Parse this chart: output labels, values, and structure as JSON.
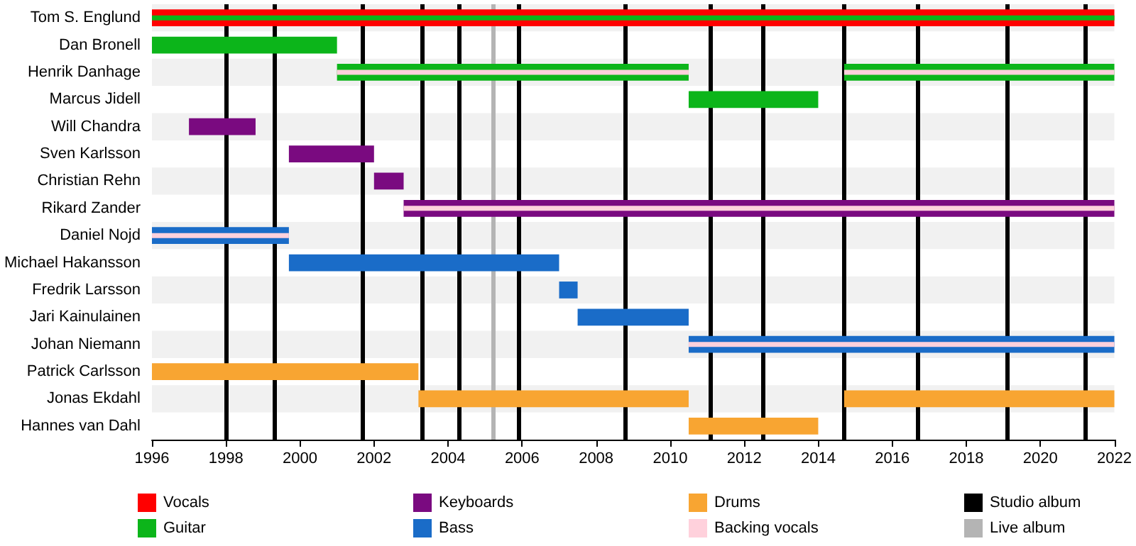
{
  "chart_data": {
    "type": "bar",
    "orientation": "horizontal",
    "legend": "bottom",
    "categories": [
      "Tom S. Englund",
      "Dan Bronell",
      "Henrik Danhage",
      "Marcus Jidell",
      "Will Chandra",
      "Sven Karlsson",
      "Christian Rehn",
      "Rikard Zander",
      "Daniel Nojd",
      "Michael Hakansson",
      "Fredrik Larsson",
      "Jari Kainulainen",
      "Johan Niemann",
      "Patrick Carlsson",
      "Jonas Ekdahl",
      "Hannes van Dahl"
    ],
    "xlim": [
      1996,
      2022
    ],
    "xticks": [
      1996,
      1998,
      2000,
      2002,
      2004,
      2006,
      2008,
      2010,
      2012,
      2014,
      2016,
      2018,
      2020,
      2022
    ],
    "series": [
      {
        "name": "Vocals",
        "color": "#ff0000",
        "base": [
          1996,
          null,
          null,
          null,
          null,
          null,
          null,
          null,
          null,
          null,
          null,
          null,
          null,
          null,
          null,
          null
        ],
        "values": [
          26,
          null,
          null,
          null,
          null,
          null,
          null,
          null,
          null,
          null,
          null,
          null,
          null,
          null,
          null,
          null
        ]
      },
      {
        "name": "Guitar",
        "color": "#0cb51a",
        "base": [
          null,
          1996,
          2001,
          2010.5,
          null,
          null,
          null,
          null,
          null,
          null,
          null,
          null,
          null,
          null,
          null,
          null
        ],
        "values": [
          null,
          5,
          9.5,
          3.5,
          null,
          null,
          null,
          null,
          null,
          null,
          null,
          null,
          null,
          null,
          null,
          null
        ]
      },
      {
        "name": "Keyboards",
        "color": "#7a0a80",
        "base": [
          null,
          null,
          null,
          null,
          1997,
          1999.7,
          2002,
          2002.8,
          null,
          null,
          null,
          null,
          null,
          null,
          null,
          null
        ],
        "values": [
          null,
          null,
          null,
          null,
          1.8,
          2.3,
          0.8,
          19.2,
          null,
          null,
          null,
          null,
          null,
          null,
          null,
          null
        ]
      },
      {
        "name": "Bass",
        "color": "#1a6cc8",
        "base": [
          null,
          null,
          null,
          null,
          null,
          null,
          null,
          null,
          1996,
          1999.7,
          2007,
          2007.5,
          2010.5,
          null,
          null,
          null
        ],
        "values": [
          null,
          null,
          null,
          null,
          null,
          null,
          null,
          null,
          3.7,
          7.3,
          0.5,
          3,
          11.5,
          null,
          null,
          null
        ]
      },
      {
        "name": "Drums",
        "color": "#f8a532",
        "base": [
          null,
          null,
          null,
          null,
          null,
          null,
          null,
          null,
          null,
          null,
          null,
          null,
          null,
          1996,
          2003.2,
          2010.5
        ],
        "values": [
          null,
          null,
          null,
          null,
          null,
          null,
          null,
          null,
          null,
          null,
          null,
          null,
          null,
          7.2,
          7.3,
          3.5
        ]
      },
      {
        "color": "#0cb51a",
        "base": [
          null,
          null,
          2014.7,
          null,
          null,
          null,
          null,
          null,
          null,
          null,
          null,
          null,
          null,
          null,
          null,
          null
        ],
        "values": [
          null,
          null,
          7.3,
          null,
          null,
          null,
          null,
          null,
          null,
          null,
          null,
          null,
          null,
          null,
          null,
          null
        ]
      },
      {
        "color": "#f8a532",
        "base": [
          null,
          null,
          null,
          null,
          null,
          null,
          null,
          null,
          null,
          null,
          null,
          null,
          null,
          null,
          2014.7,
          null
        ],
        "values": [
          null,
          null,
          null,
          null,
          null,
          null,
          null,
          null,
          null,
          null,
          null,
          null,
          null,
          null,
          7.3,
          null
        ]
      },
      {
        "color": "#0cb51a",
        "base": [
          1996,
          null,
          null,
          null,
          null,
          null,
          null,
          null,
          null,
          null,
          null,
          null,
          null,
          null,
          null,
          null
        ],
        "values": [
          26,
          null,
          null,
          null,
          null,
          null,
          null,
          null,
          null,
          null,
          null,
          null,
          null,
          null,
          null,
          null
        ]
      },
      {
        "name": "Backing vocals",
        "color": "#ffd1dc",
        "base": [
          null,
          null,
          2001,
          null,
          null,
          null,
          null,
          2002.8,
          1996,
          null,
          null,
          null,
          2010.5,
          null,
          null,
          null
        ],
        "values": [
          null,
          null,
          9.5,
          null,
          null,
          null,
          null,
          19.2,
          3.7,
          null,
          null,
          null,
          11.5,
          null,
          null,
          null
        ]
      },
      {
        "color": "#ffd1dc",
        "base": [
          null,
          null,
          2014.7,
          null,
          null,
          null,
          null,
          null,
          null,
          null,
          null,
          null,
          null,
          null,
          null,
          null
        ],
        "values": [
          null,
          null,
          7.3,
          null,
          null,
          null,
          null,
          null,
          null,
          null,
          null,
          null,
          null,
          null,
          null,
          null
        ]
      }
    ],
    "ref_lines": [
      {
        "axis": "x",
        "value": 1998.0,
        "label": "Studio album",
        "color": "#000000"
      },
      {
        "axis": "x",
        "value": 1999.3,
        "color": "#000000"
      },
      {
        "axis": "x",
        "value": 2001.7,
        "color": "#000000"
      },
      {
        "axis": "x",
        "value": 2003.3,
        "color": "#000000"
      },
      {
        "axis": "x",
        "value": 2004.3,
        "color": "#000000"
      },
      {
        "axis": "x",
        "value": 2005.9,
        "color": "#000000"
      },
      {
        "axis": "x",
        "value": 2008.8,
        "color": "#000000"
      },
      {
        "axis": "x",
        "value": 2011.1,
        "color": "#000000"
      },
      {
        "axis": "x",
        "value": 2012.5,
        "color": "#000000"
      },
      {
        "axis": "x",
        "value": 2014.7,
        "color": "#000000"
      },
      {
        "axis": "x",
        "value": 2016.7,
        "color": "#000000"
      },
      {
        "axis": "x",
        "value": 2019.1,
        "color": "#000000"
      },
      {
        "axis": "x",
        "value": 2021.2,
        "color": "#000000"
      },
      {
        "axis": "x",
        "value": 2005.2,
        "label": "Live album",
        "color": "#b4b4b4"
      }
    ]
  }
}
